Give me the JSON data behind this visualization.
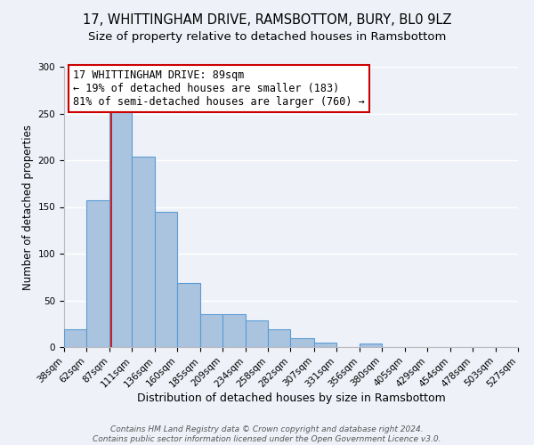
{
  "title": "17, WHITTINGHAM DRIVE, RAMSBOTTOM, BURY, BL0 9LZ",
  "subtitle": "Size of property relative to detached houses in Ramsbottom",
  "xlabel": "Distribution of detached houses by size in Ramsbottom",
  "ylabel": "Number of detached properties",
  "bin_edges": [
    38,
    62,
    87,
    111,
    136,
    160,
    185,
    209,
    234,
    258,
    282,
    307,
    331,
    356,
    380,
    405,
    429,
    454,
    478,
    503,
    527
  ],
  "bin_heights": [
    19,
    157,
    252,
    204,
    145,
    69,
    35,
    35,
    29,
    19,
    10,
    5,
    0,
    4,
    0,
    0,
    0,
    0,
    0,
    0
  ],
  "bar_color": "#aac4df",
  "bar_edge_color": "#5b9bd5",
  "property_size": 89,
  "vline_color": "#cc0000",
  "annotation_line1": "17 WHITTINGHAM DRIVE: 89sqm",
  "annotation_line2": "← 19% of detached houses are smaller (183)",
  "annotation_line3": "81% of semi-detached houses are larger (760) →",
  "annotation_box_color": "#ffffff",
  "annotation_box_edge_color": "#cc0000",
  "ylim": [
    0,
    300
  ],
  "yticks": [
    0,
    50,
    100,
    150,
    200,
    250,
    300
  ],
  "footnote1": "Contains HM Land Registry data © Crown copyright and database right 2024.",
  "footnote2": "Contains public sector information licensed under the Open Government Licence v3.0.",
  "background_color": "#eef2f8",
  "grid_color": "#ffffff",
  "title_fontsize": 10.5,
  "subtitle_fontsize": 9.5,
  "xlabel_fontsize": 9,
  "ylabel_fontsize": 8.5,
  "tick_fontsize": 7.5,
  "annotation_fontsize": 8.5,
  "footnote_fontsize": 6.5
}
